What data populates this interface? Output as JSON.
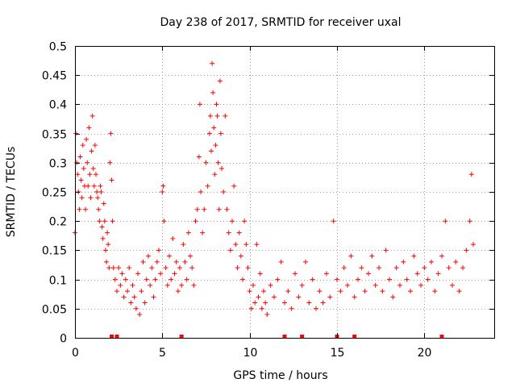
{
  "chart_data": {
    "type": "scatter",
    "title": "Day 238 of 2017, SRMTID for receiver uxal",
    "xlabel": "GPS time / hours",
    "ylabel": "SRMTID / TECUs",
    "xlim": [
      0,
      24
    ],
    "ylim": [
      0,
      0.5
    ],
    "x_ticks": [
      0,
      5,
      10,
      15,
      20
    ],
    "y_ticks": [
      0,
      0.05,
      0.1,
      0.15,
      0.2,
      0.25,
      0.3,
      0.35,
      0.4,
      0.45,
      0.5
    ],
    "y_tick_labels": [
      "0",
      "0.05",
      "0.1",
      "0.15",
      "0.2",
      "0.25",
      "0.3",
      "0.35",
      "0.4",
      "0.45",
      "0.5"
    ],
    "grid": true,
    "marker": "+",
    "color": "#ff0000",
    "series": [
      {
        "name": "SRMTID",
        "points": [
          [
            0.0,
            0.18
          ],
          [
            0.05,
            0.35
          ],
          [
            0.1,
            0.3
          ],
          [
            0.15,
            0.28
          ],
          [
            0.2,
            0.25
          ],
          [
            0.25,
            0.22
          ],
          [
            0.3,
            0.31
          ],
          [
            0.35,
            0.27
          ],
          [
            0.4,
            0.24
          ],
          [
            0.45,
            0.33
          ],
          [
            0.5,
            0.29
          ],
          [
            0.55,
            0.26
          ],
          [
            0.6,
            0.22
          ],
          [
            0.65,
            0.34
          ],
          [
            0.7,
            0.3
          ],
          [
            0.75,
            0.26
          ],
          [
            0.8,
            0.36
          ],
          [
            0.85,
            0.28
          ],
          [
            0.9,
            0.24
          ],
          [
            0.95,
            0.32
          ],
          [
            1.0,
            0.38
          ],
          [
            1.05,
            0.29
          ],
          [
            1.1,
            0.26
          ],
          [
            1.15,
            0.33
          ],
          [
            1.2,
            0.28
          ],
          [
            1.25,
            0.25
          ],
          [
            1.3,
            0.24
          ],
          [
            1.35,
            0.22
          ],
          [
            1.4,
            0.2
          ],
          [
            1.45,
            0.26
          ],
          [
            1.5,
            0.25
          ],
          [
            1.55,
            0.19
          ],
          [
            1.6,
            0.17
          ],
          [
            1.65,
            0.23
          ],
          [
            1.7,
            0.2
          ],
          [
            1.75,
            0.15
          ],
          [
            1.8,
            0.13
          ],
          [
            1.85,
            0.18
          ],
          [
            1.9,
            0.16
          ],
          [
            1.95,
            0.12
          ],
          [
            2.0,
            0.3
          ],
          [
            2.05,
            0.35
          ],
          [
            2.1,
            0.27
          ],
          [
            2.15,
            0.2
          ],
          [
            2.2,
            0.12
          ],
          [
            2.3,
            0.1
          ],
          [
            2.4,
            0.08
          ],
          [
            2.5,
            0.12
          ],
          [
            2.6,
            0.09
          ],
          [
            2.7,
            0.11
          ],
          [
            2.8,
            0.07
          ],
          [
            2.9,
            0.1
          ],
          [
            3.0,
            0.08
          ],
          [
            3.1,
            0.12
          ],
          [
            3.2,
            0.06
          ],
          [
            3.3,
            0.09
          ],
          [
            3.4,
            0.07
          ],
          [
            3.5,
            0.05
          ],
          [
            3.6,
            0.11
          ],
          [
            3.7,
            0.04
          ],
          [
            3.8,
            0.08
          ],
          [
            3.9,
            0.13
          ],
          [
            4.0,
            0.06
          ],
          [
            4.1,
            0.1
          ],
          [
            4.2,
            0.14
          ],
          [
            4.3,
            0.09
          ],
          [
            4.4,
            0.12
          ],
          [
            4.5,
            0.07
          ],
          [
            4.6,
            0.1
          ],
          [
            4.7,
            0.13
          ],
          [
            4.8,
            0.15
          ],
          [
            4.9,
            0.11
          ],
          [
            5.0,
            0.25
          ],
          [
            5.05,
            0.26
          ],
          [
            5.1,
            0.2
          ],
          [
            5.2,
            0.12
          ],
          [
            5.3,
            0.09
          ],
          [
            5.4,
            0.14
          ],
          [
            5.5,
            0.1
          ],
          [
            5.6,
            0.17
          ],
          [
            5.7,
            0.11
          ],
          [
            5.8,
            0.13
          ],
          [
            5.9,
            0.08
          ],
          [
            6.0,
            0.12
          ],
          [
            6.1,
            0.09
          ],
          [
            6.2,
            0.16
          ],
          [
            6.3,
            0.13
          ],
          [
            6.4,
            0.1
          ],
          [
            6.5,
            0.18
          ],
          [
            6.6,
            0.14
          ],
          [
            6.7,
            0.12
          ],
          [
            6.8,
            0.09
          ],
          [
            6.9,
            0.2
          ],
          [
            7.0,
            0.22
          ],
          [
            7.1,
            0.31
          ],
          [
            7.15,
            0.4
          ],
          [
            7.2,
            0.25
          ],
          [
            7.3,
            0.18
          ],
          [
            7.4,
            0.22
          ],
          [
            7.5,
            0.3
          ],
          [
            7.6,
            0.26
          ],
          [
            7.7,
            0.35
          ],
          [
            7.75,
            0.38
          ],
          [
            7.8,
            0.32
          ],
          [
            7.85,
            0.47
          ],
          [
            7.9,
            0.42
          ],
          [
            7.95,
            0.36
          ],
          [
            8.0,
            0.28
          ],
          [
            8.05,
            0.33
          ],
          [
            8.1,
            0.4
          ],
          [
            8.15,
            0.38
          ],
          [
            8.2,
            0.3
          ],
          [
            8.25,
            0.22
          ],
          [
            8.3,
            0.44
          ],
          [
            8.35,
            0.35
          ],
          [
            8.4,
            0.29
          ],
          [
            8.5,
            0.25
          ],
          [
            8.6,
            0.38
          ],
          [
            8.7,
            0.22
          ],
          [
            8.8,
            0.18
          ],
          [
            8.9,
            0.15
          ],
          [
            9.0,
            0.2
          ],
          [
            9.1,
            0.26
          ],
          [
            9.2,
            0.16
          ],
          [
            9.3,
            0.12
          ],
          [
            9.4,
            0.18
          ],
          [
            9.5,
            0.14
          ],
          [
            9.6,
            0.1
          ],
          [
            9.7,
            0.2
          ],
          [
            9.8,
            0.16
          ],
          [
            9.9,
            0.12
          ],
          [
            10.0,
            0.08
          ],
          [
            10.1,
            0.05
          ],
          [
            10.2,
            0.09
          ],
          [
            10.3,
            0.06
          ],
          [
            10.4,
            0.16
          ],
          [
            10.5,
            0.07
          ],
          [
            10.6,
            0.11
          ],
          [
            10.7,
            0.05
          ],
          [
            10.8,
            0.08
          ],
          [
            10.9,
            0.06
          ],
          [
            11.0,
            0.04
          ],
          [
            11.2,
            0.09
          ],
          [
            11.4,
            0.07
          ],
          [
            11.6,
            0.1
          ],
          [
            11.8,
            0.13
          ],
          [
            12.0,
            0.06
          ],
          [
            12.2,
            0.08
          ],
          [
            12.4,
            0.05
          ],
          [
            12.6,
            0.11
          ],
          [
            12.8,
            0.07
          ],
          [
            13.0,
            0.09
          ],
          [
            13.2,
            0.13
          ],
          [
            13.4,
            0.06
          ],
          [
            13.6,
            0.1
          ],
          [
            13.8,
            0.05
          ],
          [
            14.0,
            0.08
          ],
          [
            14.2,
            0.06
          ],
          [
            14.4,
            0.11
          ],
          [
            14.6,
            0.07
          ],
          [
            14.8,
            0.2
          ],
          [
            15.0,
            0.1
          ],
          [
            15.2,
            0.08
          ],
          [
            15.4,
            0.12
          ],
          [
            15.6,
            0.09
          ],
          [
            15.8,
            0.14
          ],
          [
            16.0,
            0.07
          ],
          [
            16.2,
            0.1
          ],
          [
            16.4,
            0.12
          ],
          [
            16.6,
            0.08
          ],
          [
            16.8,
            0.11
          ],
          [
            17.0,
            0.14
          ],
          [
            17.2,
            0.09
          ],
          [
            17.4,
            0.12
          ],
          [
            17.6,
            0.08
          ],
          [
            17.8,
            0.15
          ],
          [
            18.0,
            0.1
          ],
          [
            18.2,
            0.07
          ],
          [
            18.4,
            0.12
          ],
          [
            18.6,
            0.09
          ],
          [
            18.8,
            0.13
          ],
          [
            19.0,
            0.1
          ],
          [
            19.2,
            0.08
          ],
          [
            19.4,
            0.14
          ],
          [
            19.6,
            0.11
          ],
          [
            19.8,
            0.09
          ],
          [
            20.0,
            0.12
          ],
          [
            20.2,
            0.1
          ],
          [
            20.4,
            0.13
          ],
          [
            20.6,
            0.08
          ],
          [
            20.8,
            0.11
          ],
          [
            21.0,
            0.14
          ],
          [
            21.2,
            0.2
          ],
          [
            21.4,
            0.12
          ],
          [
            21.6,
            0.09
          ],
          [
            21.8,
            0.13
          ],
          [
            22.0,
            0.08
          ],
          [
            22.2,
            0.12
          ],
          [
            22.4,
            0.15
          ],
          [
            22.6,
            0.2
          ],
          [
            22.7,
            0.28
          ],
          [
            22.8,
            0.16
          ]
        ]
      }
    ],
    "baseline_markers_x": [
      2.1,
      2.4,
      6.1,
      12.0,
      13.0,
      15.0,
      16.0,
      21.0
    ]
  }
}
